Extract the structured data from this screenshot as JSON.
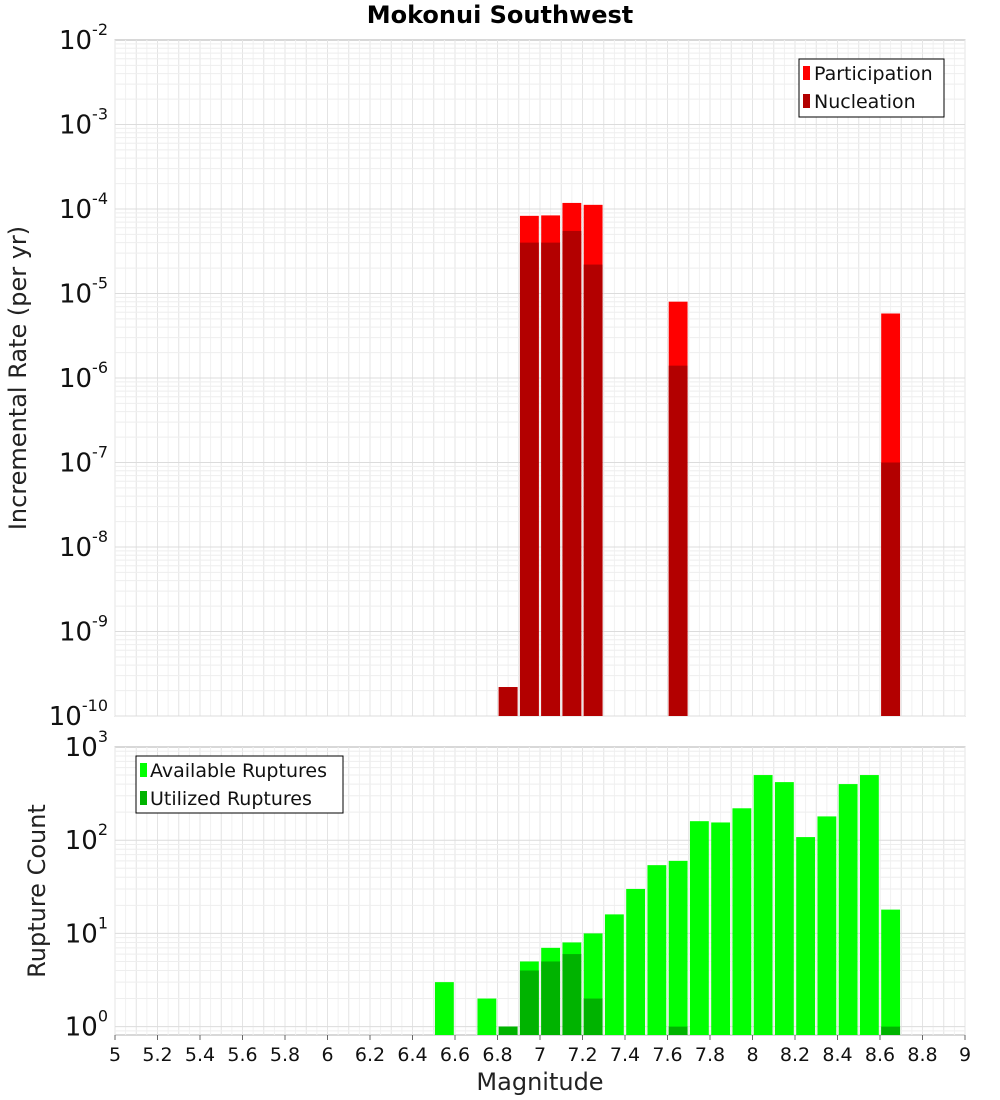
{
  "chart_data": {
    "title": "Mokonui Southwest",
    "xlabel": "Magnitude",
    "xlim": [
      5,
      9
    ],
    "x_ticks": [
      "5",
      "5.2",
      "5.4",
      "5.6",
      "5.8",
      "6",
      "6.2",
      "6.4",
      "6.6",
      "6.8",
      "7",
      "7.2",
      "7.4",
      "7.6",
      "7.8",
      "8",
      "8.2",
      "8.4",
      "8.6",
      "8.8",
      "9"
    ],
    "bin_width": 0.1,
    "panels": [
      {
        "type": "bar",
        "scale": "log",
        "ylabel": "Incremental Rate (per yr)",
        "ylim_exp": [
          -10,
          -2
        ],
        "y_tick_exponents": [
          "-10",
          "-9",
          "-8",
          "-7",
          "-6",
          "-5",
          "-4",
          "-3",
          "-2"
        ],
        "legend": {
          "position": "top-right",
          "entries": [
            "Participation",
            "Nucleation"
          ]
        },
        "series": [
          {
            "name": "Participation",
            "color": "#ff0000",
            "x": [
              6.85,
              6.95,
              7.05,
              7.15,
              7.25,
              7.65,
              8.65
            ],
            "values": [
              2.2e-10,
              8.3e-05,
              8.4e-05,
              0.000118,
              0.000112,
              8e-06,
              5.8e-06
            ]
          },
          {
            "name": "Nucleation",
            "color": "#b30000",
            "x": [
              6.85,
              6.95,
              7.05,
              7.15,
              7.25,
              7.65,
              8.65
            ],
            "values": [
              2.2e-10,
              4e-05,
              4e-05,
              5.5e-05,
              2.2e-05,
              1.4e-06,
              1e-07
            ]
          }
        ]
      },
      {
        "type": "bar",
        "scale": "log",
        "ylabel": "Rupture Count",
        "ylim_exp": [
          -0.09,
          3
        ],
        "y_tick_exponents": [
          "0",
          "1",
          "2",
          "3"
        ],
        "legend": {
          "position": "top-left",
          "entries": [
            "Available Ruptures",
            "Utilized Ruptures"
          ]
        },
        "series": [
          {
            "name": "Available Ruptures",
            "color": "#00ff00",
            "x": [
              6.55,
              6.75,
              6.85,
              6.95,
              7.05,
              7.15,
              7.25,
              7.35,
              7.45,
              7.55,
              7.65,
              7.75,
              7.85,
              7.95,
              8.05,
              8.15,
              8.25,
              8.35,
              8.45,
              8.55,
              8.65
            ],
            "values": [
              3,
              2,
              1,
              5,
              7,
              8,
              10,
              16,
              30,
              54,
              60,
              160,
              155,
              220,
              500,
              420,
              108,
              180,
              400,
              500,
              18
            ]
          },
          {
            "name": "Utilized Ruptures",
            "color": "#00b300",
            "x": [
              6.85,
              6.95,
              7.05,
              7.15,
              7.25,
              7.65,
              8.65
            ],
            "values": [
              1,
              4,
              5,
              6,
              2,
              1,
              1
            ]
          }
        ]
      }
    ]
  }
}
